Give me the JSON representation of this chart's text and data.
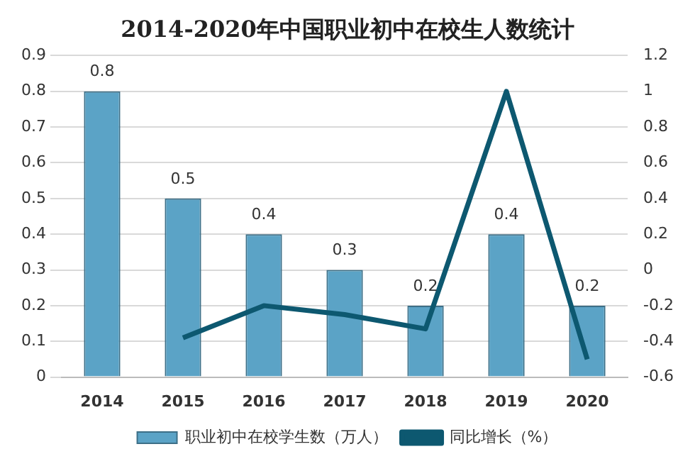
{
  "chart_data": {
    "type": "bar",
    "title": "2014-2020年中国职业初中在校生人数统计",
    "categories": [
      "2014",
      "2015",
      "2016",
      "2017",
      "2018",
      "2019",
      "2020"
    ],
    "series": [
      {
        "name": "职业初中在校学生数（万人）",
        "color": "#5ba3c6",
        "values": [
          0.8,
          0.5,
          0.4,
          0.3,
          0.2,
          0.4,
          0.2
        ],
        "value_labels": [
          "0.8",
          "0.5",
          "0.4",
          "0.3",
          "0.2",
          "0.4",
          "0.2"
        ]
      },
      {
        "name": "同比增长（%）",
        "type": "line",
        "axis": "y2",
        "color": "#0d5870",
        "values": [
          null,
          -0.38,
          -0.2,
          -0.25,
          -0.33,
          1.0,
          -0.5
        ]
      }
    ],
    "ylim": [
      0,
      0.9
    ],
    "yticks": [
      0,
      0.1,
      0.2,
      0.3,
      0.4,
      0.5,
      0.6,
      0.7,
      0.8,
      0.9
    ],
    "y2lim": [
      -0.6,
      1.2
    ],
    "y2ticks": [
      -0.6,
      -0.4,
      -0.2,
      0,
      0.2,
      0.4,
      0.6,
      0.8,
      1,
      1.2
    ],
    "grid": "y",
    "legend": "bottom",
    "marker": "none"
  }
}
